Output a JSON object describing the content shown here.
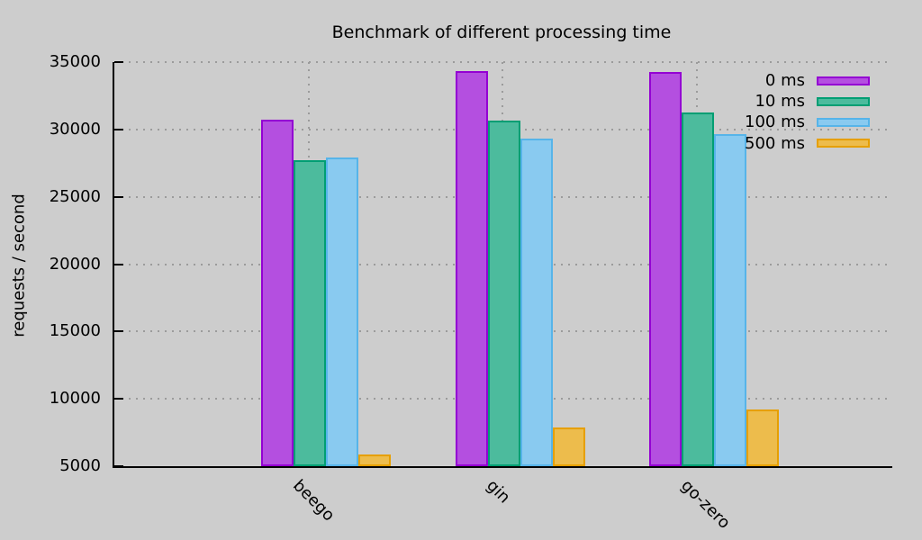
{
  "colors": {
    "background": "#cdcdcd",
    "axis": "#000000",
    "grid": "#9b9b9b"
  },
  "chart_data": {
    "type": "bar",
    "title": "Benchmark of different processing time",
    "xlabel": "",
    "ylabel": "requests / second",
    "categories": [
      "beego",
      "gin",
      "go-zero"
    ],
    "series": [
      {
        "name": "0 ms",
        "border": "#9400d3",
        "fill": "#b44fe0",
        "values": [
          30700,
          34300,
          34250
        ]
      },
      {
        "name": "10 ms",
        "border": "#009e73",
        "fill": "#4cbb9d",
        "values": [
          27750,
          30650,
          31250
        ]
      },
      {
        "name": "100 ms",
        "border": "#56b4e9",
        "fill": "#89caf0",
        "values": [
          27900,
          29350,
          29650
        ]
      },
      {
        "name": "500 ms",
        "border": "#e69f00",
        "fill": "#edbc4c",
        "values": [
          5850,
          7900,
          9200
        ]
      }
    ],
    "ylim": [
      5000,
      35000
    ],
    "ytick_step": 5000,
    "grid": true,
    "legend_position": "top-right"
  }
}
